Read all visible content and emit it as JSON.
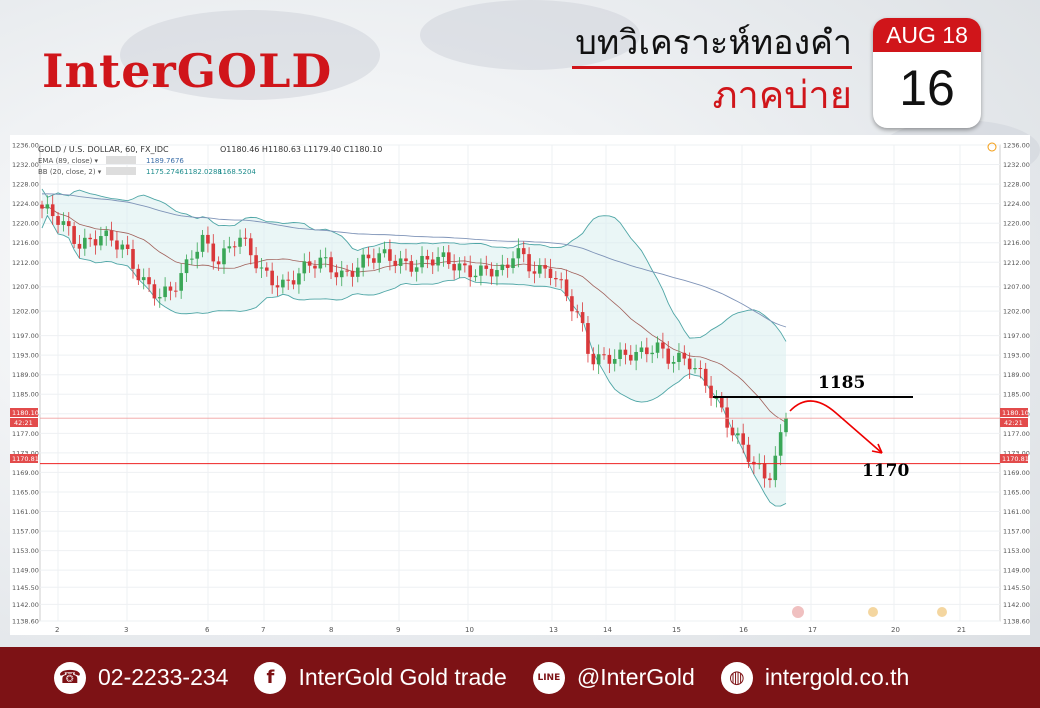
{
  "brand": {
    "logo": "InterGOLD",
    "accent": "#d0151a",
    "footer_bg": "#7d1215"
  },
  "header": {
    "title": "บทวิเคราะห์ทองคำ",
    "session": "ภาคบ่าย"
  },
  "calendar": {
    "month_year": "AUG 18",
    "day": "16"
  },
  "legend": {
    "symbol": "GOLD / U.S. DOLLAR, 60, FX_IDC",
    "ohlc": "O1180.46 H1180.63 L1179.40 C1180.10",
    "ema_label": "EMA (89, close) ▾",
    "ema_value": "1189.7676",
    "bb_label": "BB (20, close, 2) ▾",
    "bb_values": [
      "1175.2746",
      "1182.0288",
      "1168.5204"
    ]
  },
  "price_tags": {
    "current": "1180.10",
    "countdown": "42:21",
    "support": "1170.81"
  },
  "annotations": {
    "resistance_label": "1185",
    "target_label": "1170"
  },
  "footer": {
    "phone_icon": "phone-icon",
    "phone": "02-2233-234",
    "facebook_icon": "facebook-icon",
    "facebook": "InterGold Gold trade",
    "line_icon": "line-app-icon",
    "line_text": "@InterGold",
    "web_icon": "globe-icon",
    "website": "intergold.co.th"
  },
  "chart_data": {
    "type": "candlestick",
    "title": "GOLD / U.S. DOLLAR, 60, FX_IDC",
    "ylim": [
      1138.6,
      1236.0
    ],
    "y_ticks": [
      "1236.00",
      "1232.00",
      "1228.00",
      "1224.00",
      "1220.00",
      "1216.00",
      "1212.00",
      "1207.00",
      "1202.00",
      "1197.00",
      "1193.00",
      "1189.00",
      "1185.00",
      "1181.00",
      "1177.00",
      "1173.00",
      "1169.00",
      "1165.00",
      "1161.00",
      "1157.00",
      "1153.00",
      "1149.00",
      "1145.50",
      "1142.00",
      "1138.60"
    ],
    "x_ticks": [
      "2",
      "3",
      "6",
      "7",
      "8",
      "9",
      "10",
      "13",
      "14",
      "15",
      "16",
      "17",
      "20",
      "21"
    ],
    "last_close": 1180.1,
    "support_line": 1170.81,
    "resistance_level": 1185,
    "target_level": 1170,
    "close_path": [
      [
        0,
        1223
      ],
      [
        10,
        1220
      ],
      [
        22,
        1216
      ],
      [
        36,
        1218
      ],
      [
        50,
        1214
      ],
      [
        60,
        1209
      ],
      [
        72,
        1206
      ],
      [
        80,
        1206
      ],
      [
        88,
        1210
      ],
      [
        98,
        1217
      ],
      [
        108,
        1213
      ],
      [
        120,
        1217
      ],
      [
        134,
        1210
      ],
      [
        148,
        1208
      ],
      [
        160,
        1210
      ],
      [
        172,
        1212
      ],
      [
        184,
        1210
      ],
      [
        198,
        1212
      ],
      [
        212,
        1213
      ],
      [
        228,
        1212
      ],
      [
        244,
        1212
      ],
      [
        262,
        1211
      ],
      [
        276,
        1210
      ],
      [
        284,
        1209
      ],
      [
        290,
        1215
      ],
      [
        298,
        1212
      ],
      [
        312,
        1210
      ],
      [
        322,
        1204
      ],
      [
        330,
        1200
      ],
      [
        336,
        1193
      ],
      [
        346,
        1193
      ],
      [
        356,
        1192
      ],
      [
        368,
        1193
      ],
      [
        376,
        1196
      ],
      [
        384,
        1193
      ],
      [
        396,
        1191
      ],
      [
        404,
        1188
      ],
      [
        412,
        1185
      ],
      [
        420,
        1180
      ],
      [
        428,
        1175
      ],
      [
        436,
        1170
      ],
      [
        444,
        1167
      ],
      [
        448,
        1170
      ],
      [
        452,
        1176
      ],
      [
        456,
        1180.1
      ]
    ]
  }
}
